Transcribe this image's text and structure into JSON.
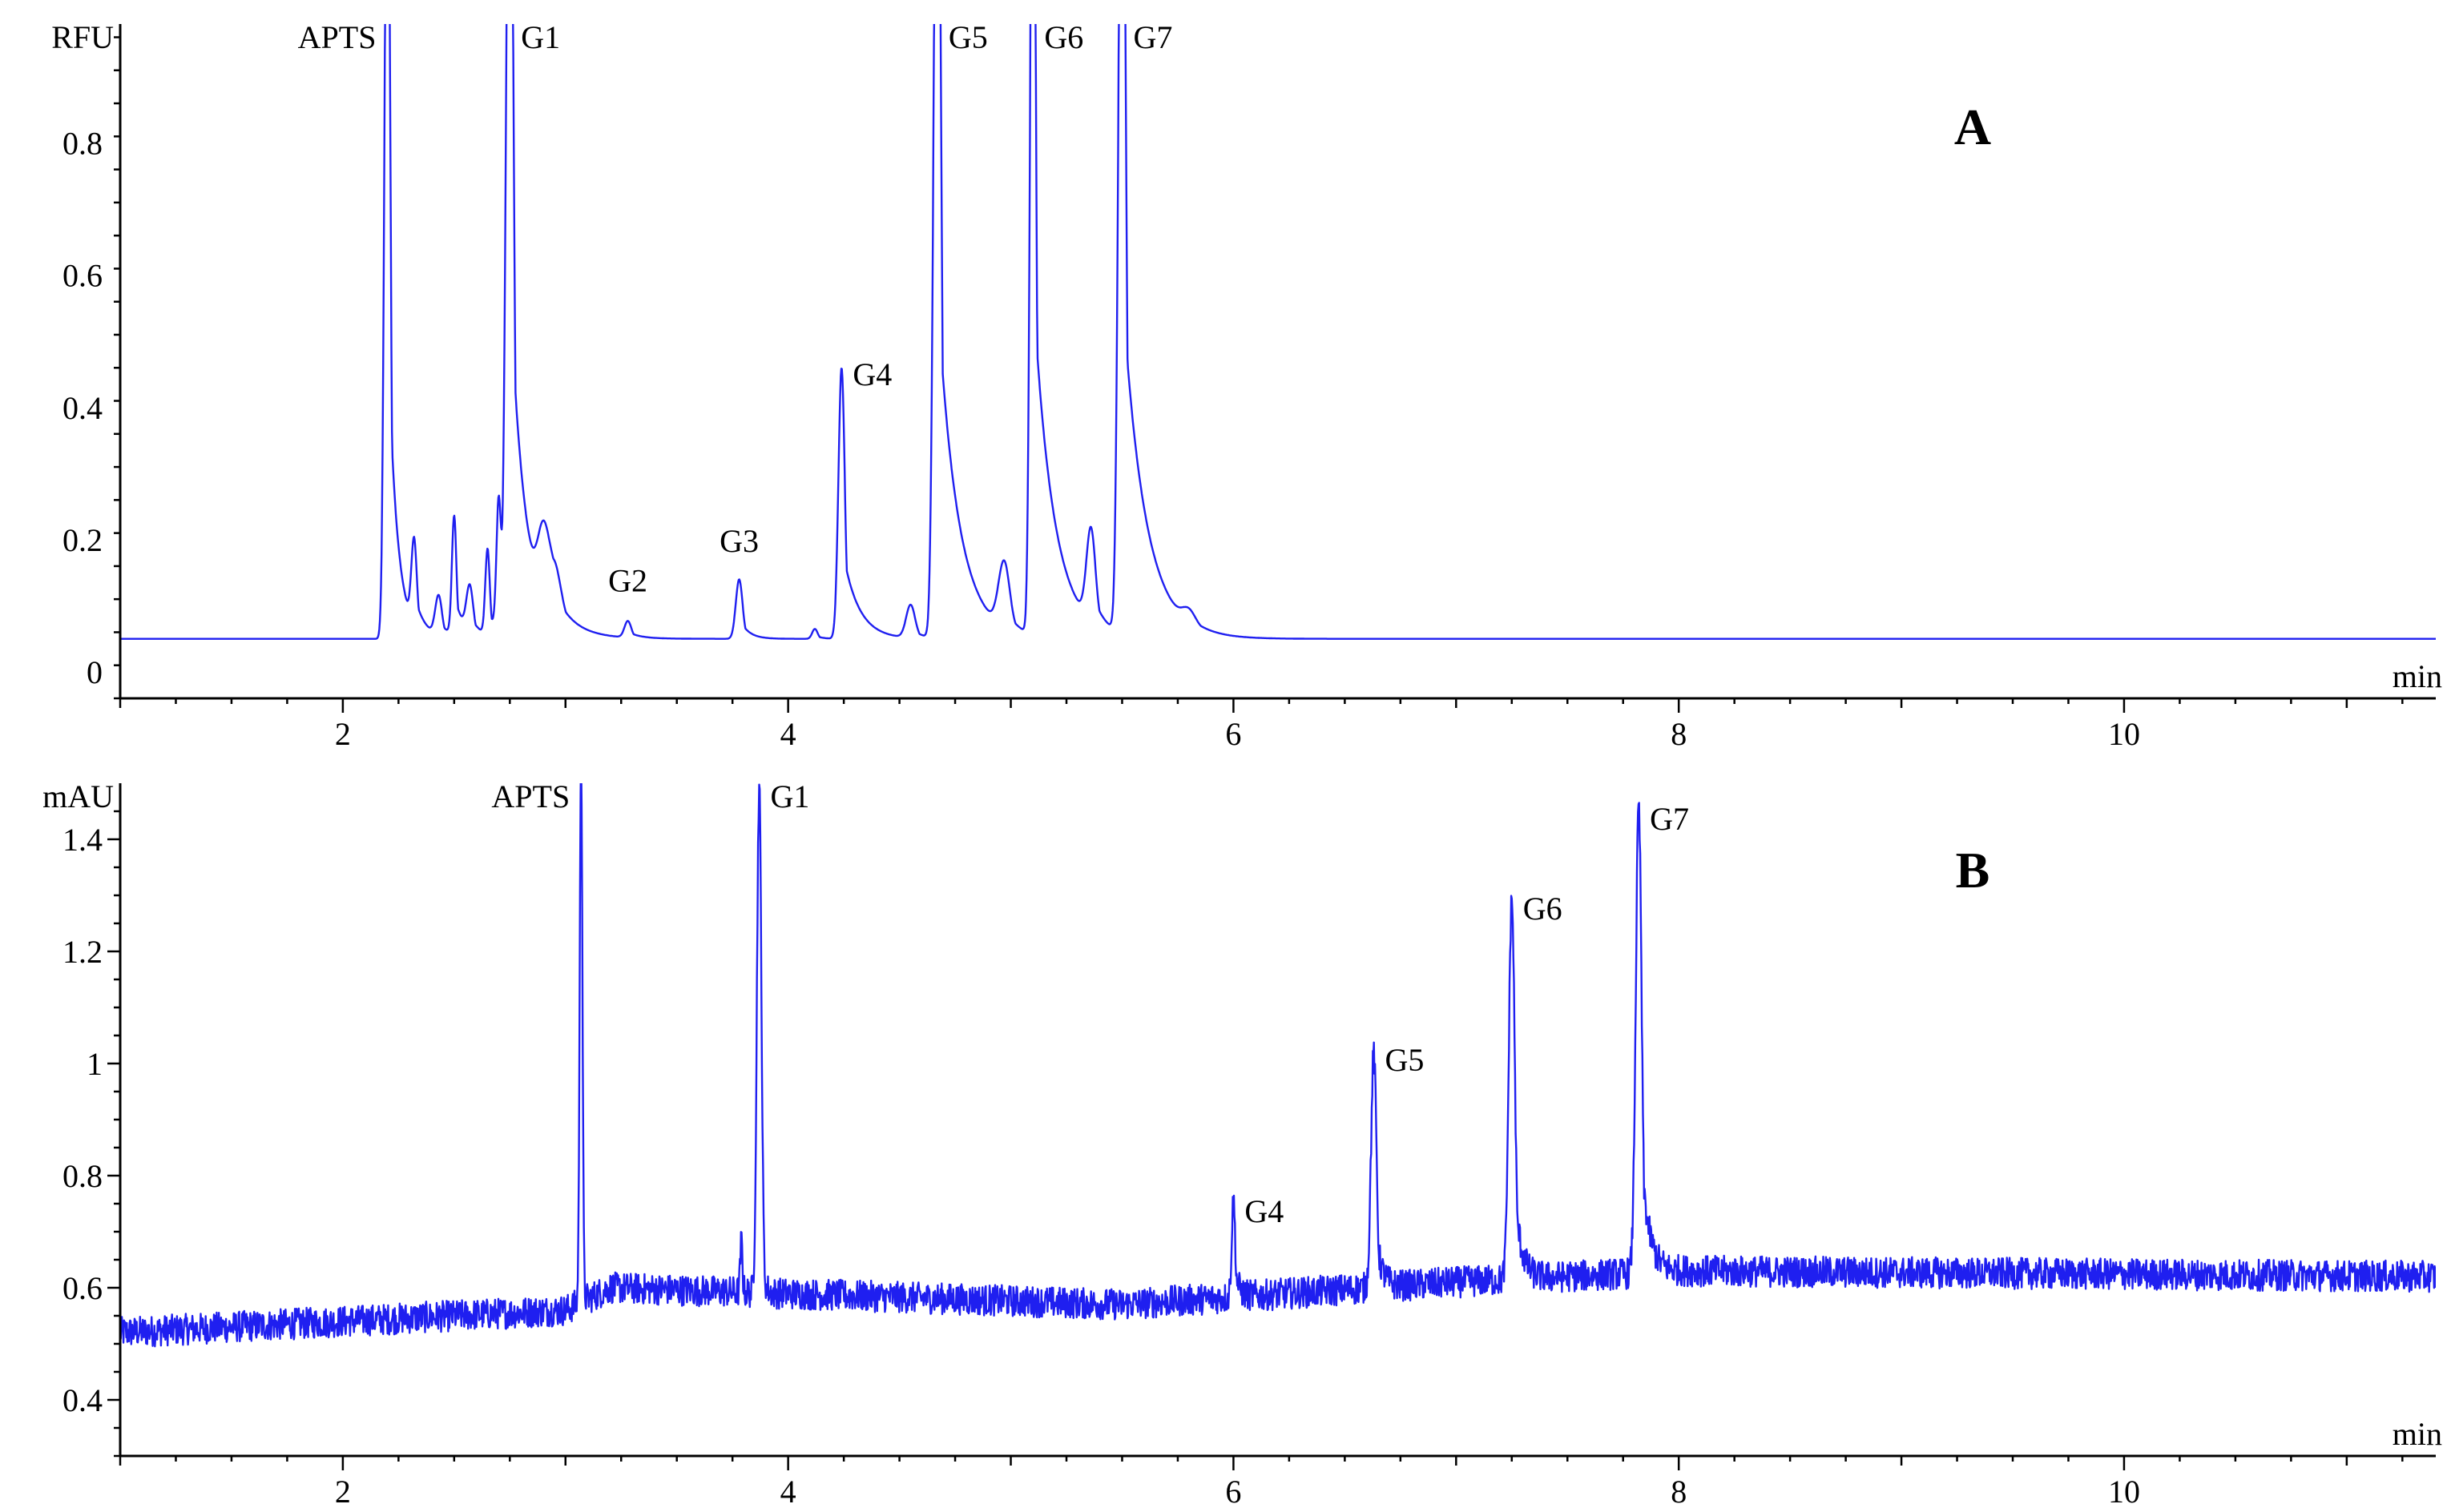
{
  "colors": {
    "trace": "#1f1ff0",
    "axis": "#000000",
    "background": "#ffffff"
  },
  "chart_data": [
    {
      "type": "line",
      "panel_label": "A",
      "ylabel": "RFU",
      "xlabel": "min",
      "xlim": [
        1.0,
        11.4
      ],
      "ylim": [
        -0.04,
        0.98
      ],
      "x_ticks": [
        2,
        4,
        6,
        8,
        10
      ],
      "x_tick_labels": [
        "2",
        "4",
        "6",
        "8",
        "10"
      ],
      "y_ticks": [
        0,
        0.2,
        0.4,
        0.6,
        0.8
      ],
      "y_tick_labels": [
        "0",
        "0.2",
        "0.4",
        "0.6",
        "0.8"
      ],
      "grid": false,
      "baseline": 0.05,
      "noise": 0,
      "peaks": [
        {
          "label": "APTS",
          "x": 2.2,
          "y": 1.2,
          "label_side": "left"
        },
        {
          "label": "G1",
          "x": 2.75,
          "y": 1.2,
          "label_side": "right"
        },
        {
          "label": "G2",
          "x": 3.28,
          "y": 0.09,
          "label_side": "above"
        },
        {
          "label": "G3",
          "x": 3.78,
          "y": 0.15,
          "label_side": "above"
        },
        {
          "label": "G4",
          "x": 4.24,
          "y": 0.47,
          "label_side": "right"
        },
        {
          "label": "G5",
          "x": 4.67,
          "y": 1.2,
          "label_side": "right"
        },
        {
          "label": "G6",
          "x": 5.1,
          "y": 1.2,
          "label_side": "right"
        },
        {
          "label": "G7",
          "x": 5.5,
          "y": 1.2,
          "label_side": "right"
        }
      ],
      "components": [
        {
          "center": 2.2,
          "height": 1.4,
          "sigma": 0.012,
          "tail": 0.04
        },
        {
          "center": 2.32,
          "height": 0.13,
          "sigma": 0.012,
          "tail": 0.05
        },
        {
          "center": 2.43,
          "height": 0.06,
          "sigma": 0.015,
          "tail": 0.05
        },
        {
          "center": 2.5,
          "height": 0.18,
          "sigma": 0.01,
          "tail": 0.04
        },
        {
          "center": 2.57,
          "height": 0.07,
          "sigma": 0.015,
          "tail": 0.05
        },
        {
          "center": 2.65,
          "height": 0.13,
          "sigma": 0.01,
          "tail": 0.03
        },
        {
          "center": 2.7,
          "height": 0.2,
          "sigma": 0.01,
          "tail": 0.03
        },
        {
          "center": 2.75,
          "height": 1.5,
          "sigma": 0.015,
          "tail": 0.07
        },
        {
          "center": 2.9,
          "height": 0.1,
          "sigma": 0.025,
          "tail": 0.08
        },
        {
          "center": 2.95,
          "height": 0.07,
          "sigma": 0.03,
          "tail": 0.12
        },
        {
          "center": 3.28,
          "height": 0.025,
          "sigma": 0.015,
          "tail": 0.05
        },
        {
          "center": 3.78,
          "height": 0.09,
          "sigma": 0.015,
          "tail": 0.04
        },
        {
          "center": 4.12,
          "height": 0.015,
          "sigma": 0.012,
          "tail": 0.03
        },
        {
          "center": 4.24,
          "height": 0.41,
          "sigma": 0.014,
          "tail": 0.07
        },
        {
          "center": 4.55,
          "height": 0.05,
          "sigma": 0.02,
          "tail": 0.04
        },
        {
          "center": 4.67,
          "height": 1.5,
          "sigma": 0.015,
          "tail": 0.09
        },
        {
          "center": 4.97,
          "height": 0.1,
          "sigma": 0.025,
          "tail": 0.05
        },
        {
          "center": 5.1,
          "height": 1.5,
          "sigma": 0.012,
          "tail": 0.09
        },
        {
          "center": 5.36,
          "height": 0.14,
          "sigma": 0.02,
          "tail": 0.05
        },
        {
          "center": 5.5,
          "height": 1.5,
          "sigma": 0.015,
          "tail": 0.1
        },
        {
          "center": 5.8,
          "height": 0.02,
          "sigma": 0.03,
          "tail": 0.1
        }
      ]
    },
    {
      "type": "line",
      "panel_label": "B",
      "ylabel": "mAU",
      "xlabel": "min",
      "xlim": [
        1.0,
        11.4
      ],
      "ylim": [
        0.3,
        1.5
      ],
      "x_ticks": [
        2,
        4,
        6,
        8,
        10
      ],
      "x_tick_labels": [
        "2",
        "4",
        "6",
        "8",
        "10"
      ],
      "y_ticks": [
        0.4,
        0.6,
        0.8,
        1.0,
        1.2,
        1.4
      ],
      "y_tick_labels": [
        "0.4",
        "0.6",
        "0.8",
        "1",
        "1.2",
        "1.4"
      ],
      "grid": false,
      "baseline_points": [
        [
          1.0,
          0.52
        ],
        [
          3.0,
          0.56
        ],
        [
          3.2,
          0.6
        ],
        [
          5.5,
          0.57
        ],
        [
          7.0,
          0.61
        ],
        [
          8.0,
          0.63
        ],
        [
          11.4,
          0.62
        ]
      ],
      "noise": 0.028,
      "peaks": [
        {
          "label": "APTS",
          "x": 3.07,
          "y": 1.55,
          "label_side": "left"
        },
        {
          "label": "G1",
          "x": 3.87,
          "y": 1.5,
          "label_side": "right"
        },
        {
          "label": "G4",
          "x": 6.0,
          "y": 0.76,
          "label_side": "right"
        },
        {
          "label": "G5",
          "x": 6.63,
          "y": 1.03,
          "label_side": "right"
        },
        {
          "label": "G6",
          "x": 7.25,
          "y": 1.3,
          "label_side": "right"
        },
        {
          "label": "G7",
          "x": 7.82,
          "y": 1.46,
          "label_side": "right"
        }
      ],
      "components": [
        {
          "center": 3.07,
          "height": 1.0,
          "sigma": 0.006,
          "tail": 0.005
        },
        {
          "center": 3.79,
          "height": 0.09,
          "sigma": 0.005,
          "tail": 0.005
        },
        {
          "center": 3.87,
          "height": 0.9,
          "sigma": 0.01,
          "tail": 0.01
        },
        {
          "center": 6.0,
          "height": 0.17,
          "sigma": 0.008,
          "tail": 0.02
        },
        {
          "center": 6.63,
          "height": 0.42,
          "sigma": 0.012,
          "tail": 0.025
        },
        {
          "center": 7.25,
          "height": 0.68,
          "sigma": 0.013,
          "tail": 0.03
        },
        {
          "center": 7.82,
          "height": 0.83,
          "sigma": 0.013,
          "tail": 0.035
        }
      ]
    }
  ]
}
